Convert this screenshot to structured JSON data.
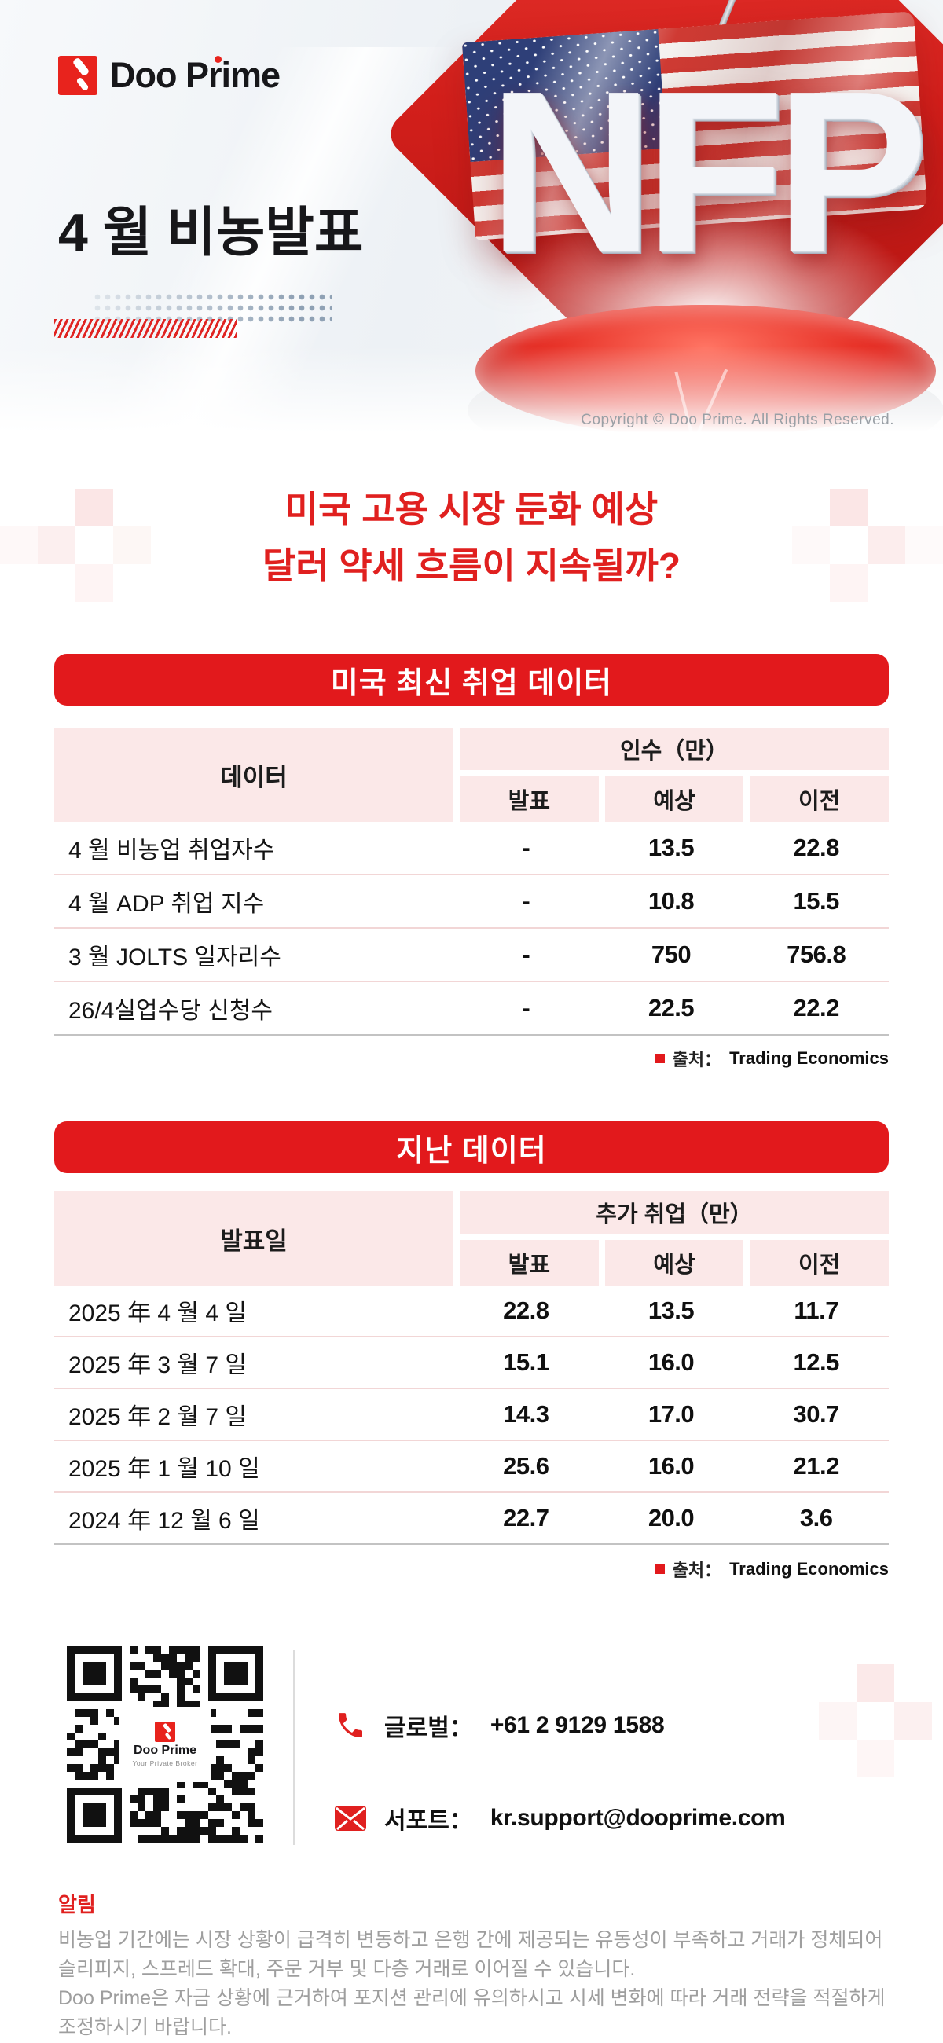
{
  "brand": {
    "logo_text": "Doo Prime",
    "copyright": "Copyright © Doo Prime. All Rights Reserved.",
    "qr_center_brand": "Doo Prime",
    "qr_center_tagline": "Your Private Broker"
  },
  "colors": {
    "accent_red": "#E2191C",
    "heading_red": "#E0201F",
    "table_header_pink": "#FBE8E8",
    "logo_red": "#E8231D"
  },
  "header": {
    "title": "4 월 비농발표",
    "nfp_text": "NFP"
  },
  "headline": {
    "line1": "미국 고용 시장 둔화 예상",
    "line2": "달러 약세 흐름이 지속될까?"
  },
  "section1": {
    "banner": "미국 최신 취업 데이터",
    "table": {
      "col1_header": "데이터",
      "group_header": "인수（만）",
      "sub_headers": [
        "발표",
        "예상",
        "이전"
      ],
      "rows": [
        {
          "label": "4 월 비농업 취업자수",
          "values": [
            "-",
            "13.5",
            "22.8"
          ]
        },
        {
          "label": "4 월 ADP 취업 지수",
          "values": [
            "-",
            "10.8",
            "15.5"
          ]
        },
        {
          "label": "3 월 JOLTS 일자리수",
          "values": [
            "-",
            "750",
            "756.8"
          ]
        },
        {
          "label": "26/4실업수당 신청수",
          "values": [
            "-",
            "22.5",
            "22.2"
          ]
        }
      ]
    },
    "source_label": "출처：",
    "source_value": "Trading Economics"
  },
  "section2": {
    "banner": "지난 데이터",
    "table": {
      "col1_header": "발표일",
      "group_header": "추가 취업（만）",
      "sub_headers": [
        "발표",
        "예상",
        "이전"
      ],
      "rows": [
        {
          "label": "2025 年 4 월 4 일",
          "values": [
            "22.8",
            "13.5",
            "11.7"
          ]
        },
        {
          "label": "2025 年 3 월 7 일",
          "values": [
            "15.1",
            "16.0",
            "12.5"
          ]
        },
        {
          "label": "2025 年 2 월 7 일",
          "values": [
            "14.3",
            "17.0",
            "30.7"
          ]
        },
        {
          "label": "2025 年 1 월 10 일",
          "values": [
            "25.6",
            "16.0",
            "21.2"
          ]
        },
        {
          "label": "2024 年 12 월 6 일",
          "values": [
            "22.7",
            "20.0",
            "3.6"
          ]
        }
      ]
    },
    "source_label": "출처：",
    "source_value": "Trading Economics"
  },
  "contact": {
    "global_label": "글로벌：",
    "global_value": "+61 2 9129 1588",
    "support_label": "서포트：",
    "support_value": "kr.support@dooprime.com"
  },
  "notice": {
    "title": "알림",
    "line1": "비농업 기간에는 시장 상황이 급격히 변동하고 은행 간에 제공되는 유동성이 부족하고 거래가 정체되어 슬리피지, 스프레드 확대, 주문 거부 및 다층 거래로 이어질 수 있습니다.",
    "line2": "Doo Prime은 자금 상황에 근거하여 포지션 관리에 유의하시고 시세 변화에 따라 거래 전략을 적절하게 조정하시기 바랍니다."
  }
}
